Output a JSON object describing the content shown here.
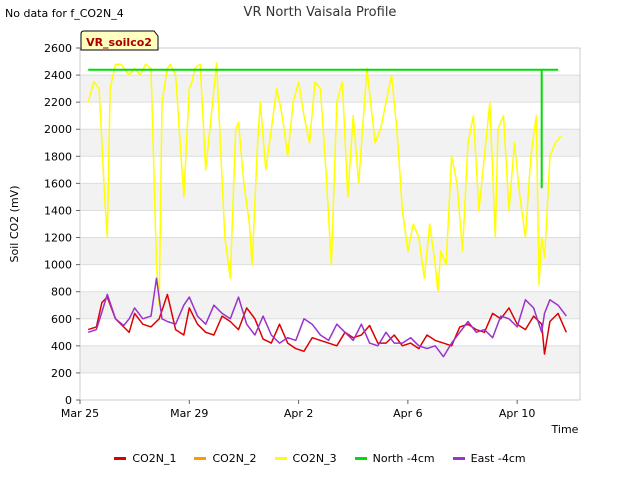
{
  "chart_data": {
    "type": "line",
    "title": "VR North Vaisala Profile",
    "no_data_note": "No data for f_CO2N_4",
    "site_label": "VR_soilco2",
    "xlabel": "Time",
    "ylabel": "Soil CO2 (mV)",
    "ylim": [
      0,
      2600
    ],
    "yticks": [
      0,
      200,
      400,
      600,
      800,
      1000,
      1200,
      1400,
      1600,
      1800,
      2000,
      2200,
      2400,
      2600
    ],
    "xlim": [
      0,
      18.3
    ],
    "xticks": [
      {
        "value": 0,
        "label": "Mar 25"
      },
      {
        "value": 4,
        "label": "Mar 29"
      },
      {
        "value": 8,
        "label": "Apr 2"
      },
      {
        "value": 12,
        "label": "Apr 6"
      },
      {
        "value": 16,
        "label": "Apr 10"
      }
    ],
    "series": [
      {
        "name": "CO2N_1",
        "color": "#dd0000",
        "x": [
          0.3,
          0.6,
          0.8,
          1.0,
          1.3,
          1.6,
          1.8,
          2.0,
          2.3,
          2.6,
          2.9,
          3.2,
          3.5,
          3.8,
          4.0,
          4.3,
          4.6,
          4.9,
          5.2,
          5.5,
          5.8,
          6.1,
          6.4,
          6.7,
          7.0,
          7.3,
          7.6,
          7.9,
          8.2,
          8.5,
          8.8,
          9.1,
          9.4,
          9.7,
          10.0,
          10.3,
          10.6,
          10.9,
          11.2,
          11.5,
          11.8,
          12.1,
          12.4,
          12.7,
          13.0,
          13.3,
          13.6,
          13.9,
          14.2,
          14.5,
          14.8,
          15.1,
          15.4,
          15.7,
          16.0,
          16.3,
          16.6,
          16.9,
          17.0,
          17.2,
          17.5,
          17.8
        ],
        "values": [
          520,
          540,
          720,
          760,
          600,
          540,
          500,
          640,
          560,
          540,
          600,
          780,
          520,
          480,
          680,
          560,
          500,
          480,
          620,
          580,
          520,
          680,
          600,
          450,
          420,
          560,
          420,
          380,
          360,
          460,
          440,
          420,
          400,
          500,
          460,
          480,
          550,
          420,
          420,
          480,
          400,
          420,
          380,
          480,
          440,
          420,
          400,
          540,
          560,
          520,
          500,
          640,
          600,
          680,
          560,
          520,
          620,
          560,
          340,
          580,
          640,
          500
        ]
      },
      {
        "name": "CO2N_2",
        "color": "#ff9900",
        "x": [],
        "values": []
      },
      {
        "name": "CO2N_3",
        "color": "#ffff00",
        "x": [
          0.3,
          0.5,
          0.7,
          0.8,
          0.9,
          1.0,
          1.1,
          1.3,
          1.5,
          1.8,
          2.0,
          2.2,
          2.4,
          2.6,
          2.8,
          2.9,
          3.0,
          3.2,
          3.3,
          3.5,
          3.8,
          4.0,
          4.1,
          4.2,
          4.4,
          4.6,
          5.0,
          5.3,
          5.5,
          5.7,
          5.8,
          6.0,
          6.2,
          6.3,
          6.5,
          6.6,
          6.8,
          7.0,
          7.2,
          7.4,
          7.6,
          7.8,
          8.0,
          8.2,
          8.4,
          8.6,
          8.8,
          9.0,
          9.2,
          9.4,
          9.6,
          9.8,
          10.0,
          10.2,
          10.5,
          10.8,
          11.0,
          11.2,
          11.4,
          11.6,
          11.8,
          12.0,
          12.2,
          12.4,
          12.6,
          12.8,
          13.0,
          13.1,
          13.2,
          13.4,
          13.6,
          13.8,
          14.0,
          14.2,
          14.4,
          14.6,
          14.8,
          15.0,
          15.2,
          15.3,
          15.5,
          15.7,
          15.9,
          16.1,
          16.3,
          16.5,
          16.7,
          16.8,
          16.9,
          17.0,
          17.1,
          17.2,
          17.4,
          17.6
        ],
        "values": [
          2200,
          2350,
          2300,
          1900,
          1500,
          1200,
          2300,
          2480,
          2480,
          2400,
          2450,
          2400,
          2480,
          2450,
          1000,
          700,
          2200,
          2450,
          2480,
          2400,
          1500,
          2300,
          2350,
          2450,
          2480,
          1700,
          2490,
          1200,
          900,
          2000,
          2050,
          1600,
          1300,
          1000,
          1900,
          2200,
          1700,
          2000,
          2300,
          2100,
          1800,
          2200,
          2350,
          2100,
          1900,
          2350,
          2300,
          1700,
          1000,
          2200,
          2350,
          1500,
          2100,
          1600,
          2450,
          1900,
          2000,
          2200,
          2400,
          2000,
          1400,
          1100,
          1300,
          1200,
          900,
          1300,
          1000,
          800,
          1100,
          1000,
          1800,
          1600,
          1100,
          1900,
          2100,
          1400,
          1800,
          2200,
          1200,
          2000,
          2100,
          1400,
          1900,
          1500,
          1200,
          1800,
          2100,
          850,
          1200,
          1050,
          1400,
          1800,
          1900,
          1950
        ]
      },
      {
        "name": "North -4cm",
        "color": "#00dd00",
        "x": [
          0.3,
          16.9,
          16.9,
          16.9,
          17.5
        ],
        "values": [
          2440,
          2440,
          1570,
          2440,
          2440
        ]
      },
      {
        "name": "East -4cm",
        "color": "#9933cc",
        "x": [
          0.3,
          0.6,
          0.8,
          1.0,
          1.3,
          1.6,
          1.8,
          2.0,
          2.3,
          2.6,
          2.8,
          3.0,
          3.2,
          3.5,
          3.8,
          4.0,
          4.3,
          4.6,
          4.9,
          5.2,
          5.5,
          5.8,
          6.1,
          6.4,
          6.7,
          7.0,
          7.3,
          7.6,
          7.9,
          8.2,
          8.5,
          8.8,
          9.1,
          9.4,
          9.7,
          10.0,
          10.3,
          10.6,
          10.9,
          11.2,
          11.5,
          11.8,
          12.1,
          12.4,
          12.7,
          13.0,
          13.3,
          13.6,
          13.9,
          14.2,
          14.5,
          14.8,
          15.1,
          15.4,
          15.7,
          16.0,
          16.3,
          16.6,
          16.9,
          17.0,
          17.2,
          17.5,
          17.8
        ],
        "values": [
          500,
          520,
          650,
          780,
          600,
          550,
          600,
          680,
          600,
          620,
          900,
          600,
          580,
          560,
          700,
          760,
          620,
          560,
          700,
          640,
          600,
          760,
          560,
          480,
          620,
          480,
          420,
          460,
          440,
          600,
          560,
          480,
          440,
          560,
          500,
          440,
          560,
          420,
          400,
          500,
          420,
          420,
          460,
          400,
          380,
          400,
          320,
          420,
          500,
          580,
          500,
          520,
          460,
          620,
          600,
          540,
          740,
          680,
          500,
          640,
          740,
          700,
          620
        ]
      }
    ]
  }
}
